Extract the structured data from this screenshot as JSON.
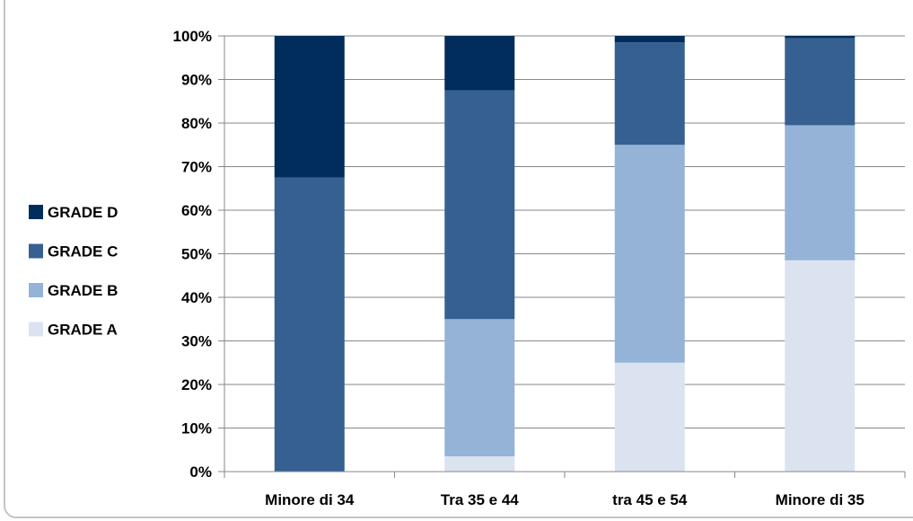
{
  "chart_data": {
    "type": "bar",
    "stacked": true,
    "percent": true,
    "categories": [
      "Minore di 34",
      "Tra 35 e 44",
      "tra 45 e 54",
      "Minore di 35"
    ],
    "series": [
      {
        "name": "GRADE A",
        "color": "#dce3f0",
        "values": [
          0,
          3.5,
          25,
          48.5
        ]
      },
      {
        "name": "GRADE B",
        "color": "#95b3d7",
        "values": [
          0,
          31.5,
          50,
          31
        ]
      },
      {
        "name": "GRADE C",
        "color": "#366092",
        "values": [
          67.5,
          52.5,
          23.5,
          20
        ]
      },
      {
        "name": "GRADE D",
        "color": "#002d5c",
        "values": [
          32.5,
          12.5,
          1.5,
          0.5
        ]
      }
    ],
    "yticks": [
      "0%",
      "10%",
      "20%",
      "30%",
      "40%",
      "50%",
      "60%",
      "70%",
      "80%",
      "90%",
      "100%"
    ],
    "ylim": [
      0,
      100
    ],
    "grid": true,
    "legend_position": "left",
    "legend_order": [
      "GRADE D",
      "GRADE C",
      "GRADE B",
      "GRADE A"
    ]
  }
}
